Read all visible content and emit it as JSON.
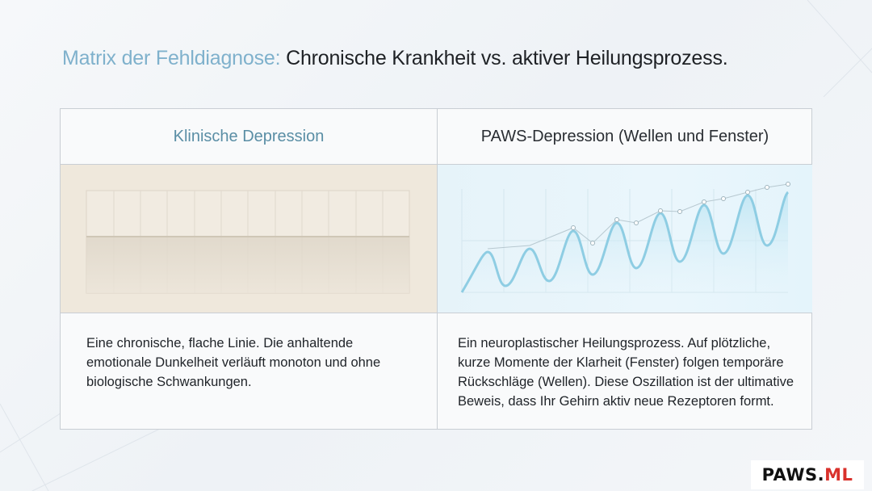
{
  "title": {
    "accent": "Matrix der Fehldiagnose:",
    "main": "Chronische Krankheit vs. aktiver Heilungsprozess."
  },
  "columns": [
    {
      "header": "Klinische Depression",
      "description": "Eine chronische, flache Linie. Die anhaltende emotionale Dunkelheit verläuft monoton und ohne biologische Schwankungen."
    },
    {
      "header": "PAWS-Depression (Wellen und Fenster)",
      "description": "Ein neuroplastischer Heilungsprozess. Auf plötzliche, kurze Momente der Klarheit (Fenster) folgen temporäre Rückschläge (Wellen). Diese Oszillation ist der ultimative Beweis, dass Ihr Gehirn aktiv neue Rezeptoren formt."
    }
  ],
  "logo": {
    "part1": "PAWS.",
    "part2": "ML"
  },
  "colors": {
    "accent": "#7fb1cc",
    "left_panel": "#efe8dc",
    "right_panel": "#e6f3f9",
    "wave": "#8ecde3",
    "logo_red": "#d9312b"
  }
}
